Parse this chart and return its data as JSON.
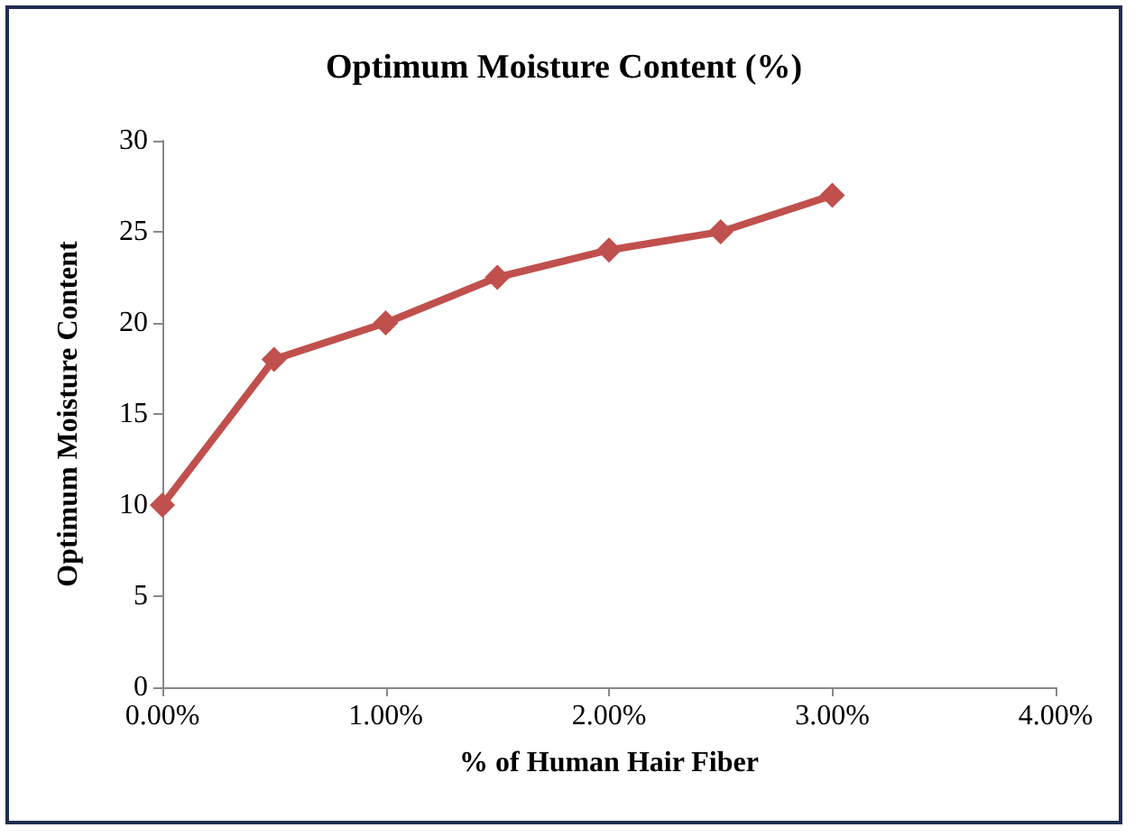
{
  "chart_data": {
    "type": "line",
    "title": "Optimum Moisture Content (%)",
    "xlabel": "% of Human Hair Fiber",
    "ylabel": "Optimum Moisture Content",
    "x": [
      0,
      0.5,
      1,
      1.5,
      2,
      2.5,
      3
    ],
    "series": [
      {
        "color": "#c0504d",
        "values": [
          10,
          18,
          20,
          22.5,
          24,
          25,
          27
        ]
      }
    ],
    "xlim": [
      0,
      4
    ],
    "xticks": [
      {
        "value": 0,
        "label": "0.00%"
      },
      {
        "value": 1,
        "label": "1.00%"
      },
      {
        "value": 2,
        "label": "2.00%"
      },
      {
        "value": 3,
        "label": "3.00%"
      },
      {
        "value": 4,
        "label": "4.00%"
      }
    ],
    "ylim": [
      0,
      30
    ],
    "yticks": [
      0,
      5,
      10,
      15,
      20,
      25,
      30
    ],
    "grid": false,
    "marker": "diamond",
    "line_style": "solid"
  }
}
